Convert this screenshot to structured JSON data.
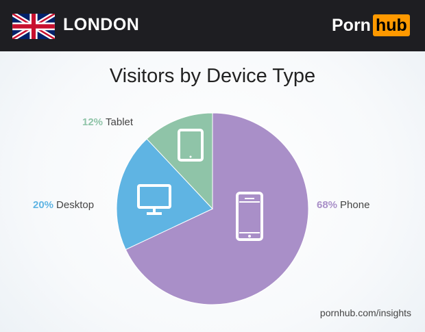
{
  "header": {
    "city": "LONDON",
    "flag_icon": "uk-flag-icon",
    "logo": {
      "part1": "Porn",
      "part2": "hub",
      "accent": "#ff9900"
    }
  },
  "chart_data": {
    "type": "pie",
    "title": "Visitors by Device Type",
    "slices": [
      {
        "label": "Phone",
        "value": 68,
        "pct_label": "68%",
        "color": "#a98fc8",
        "icon": "smartphone-icon"
      },
      {
        "label": "Desktop",
        "value": 20,
        "pct_label": "20%",
        "color": "#5fb4e3",
        "icon": "monitor-icon"
      },
      {
        "label": "Tablet",
        "value": 12,
        "pct_label": "12%",
        "color": "#8fc4a8",
        "icon": "tablet-icon"
      }
    ],
    "start": "top",
    "direction": "clockwise"
  },
  "footer": "pornhub.com/insights"
}
